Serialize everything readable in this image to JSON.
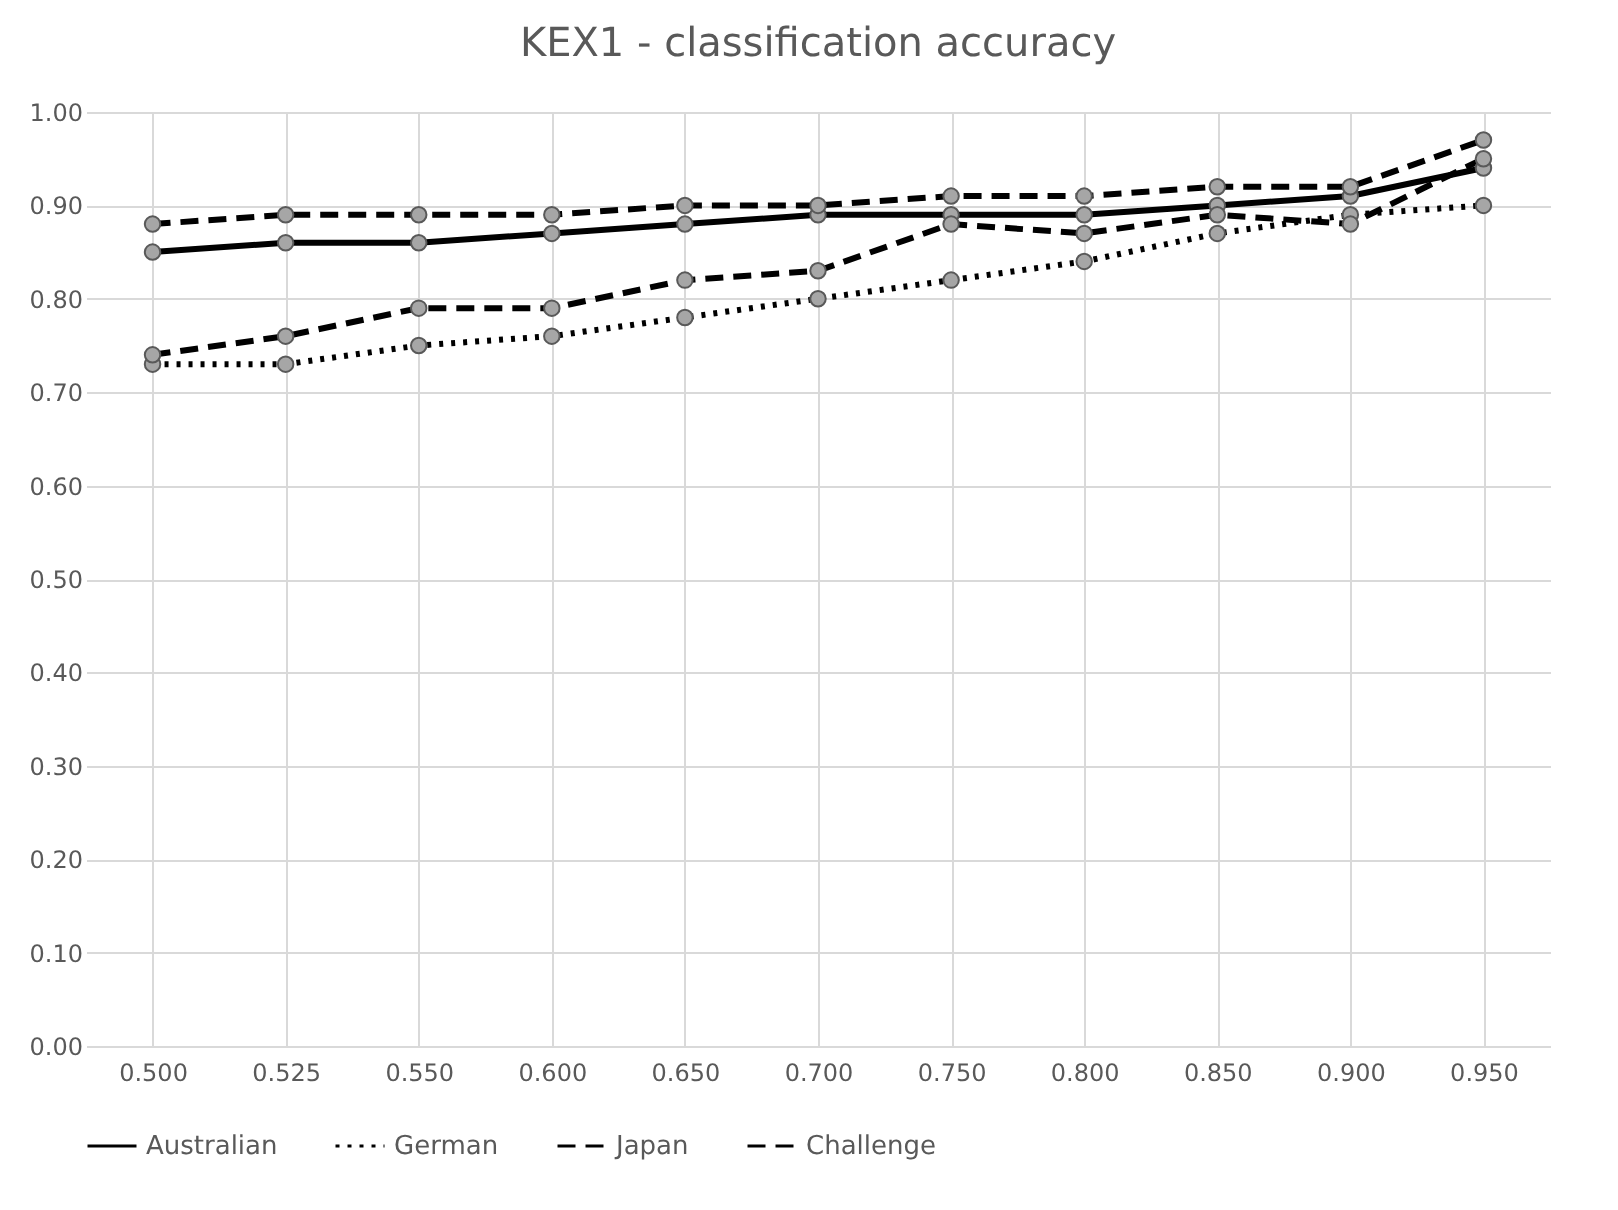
{
  "chart_data": {
    "type": "line",
    "title": "KEX1 - classification accuracy",
    "categories": [
      "0.500",
      "0.525",
      "0.550",
      "0.600",
      "0.650",
      "0.700",
      "0.750",
      "0.800",
      "0.850",
      "0.900",
      "0.950"
    ],
    "series": [
      {
        "name": "Australian",
        "color": "#000000",
        "line_style": "solid",
        "values": [
          0.85,
          0.86,
          0.86,
          0.87,
          0.88,
          0.89,
          0.89,
          0.89,
          0.9,
          0.91,
          0.94
        ]
      },
      {
        "name": "German",
        "color": "#000000",
        "line_style": "dotted",
        "values": [
          0.73,
          0.73,
          0.75,
          0.76,
          0.78,
          0.8,
          0.82,
          0.84,
          0.87,
          0.89,
          0.9
        ]
      },
      {
        "name": "Japan",
        "color": "#000000",
        "line_style": "dashed",
        "values": [
          0.74,
          0.76,
          0.79,
          0.79,
          0.82,
          0.83,
          0.88,
          0.87,
          0.89,
          0.88,
          0.95
        ]
      },
      {
        "name": "Challenge",
        "color": "#000000",
        "line_style": "dashed",
        "values": [
          0.88,
          0.89,
          0.89,
          0.89,
          0.9,
          0.9,
          0.91,
          0.91,
          0.92,
          0.92,
          0.97
        ]
      }
    ],
    "ylim": [
      0,
      1
    ],
    "yticks": [
      {
        "value": 0,
        "label": "0.00"
      },
      {
        "value": 0.1,
        "label": "0.10"
      },
      {
        "value": 0.2,
        "label": "0.20"
      },
      {
        "value": 0.3,
        "label": "0.30"
      },
      {
        "value": 0.4,
        "label": "0.40"
      },
      {
        "value": 0.5,
        "label": "0.50"
      },
      {
        "value": 0.6,
        "label": "0.60"
      },
      {
        "value": 0.7,
        "label": "0.70"
      },
      {
        "value": 0.8,
        "label": "0.80"
      },
      {
        "value": 0.9,
        "label": "0.90"
      },
      {
        "value": 1,
        "label": "1.00"
      }
    ],
    "grid": true,
    "legend": "bottom",
    "marker": "circle"
  }
}
